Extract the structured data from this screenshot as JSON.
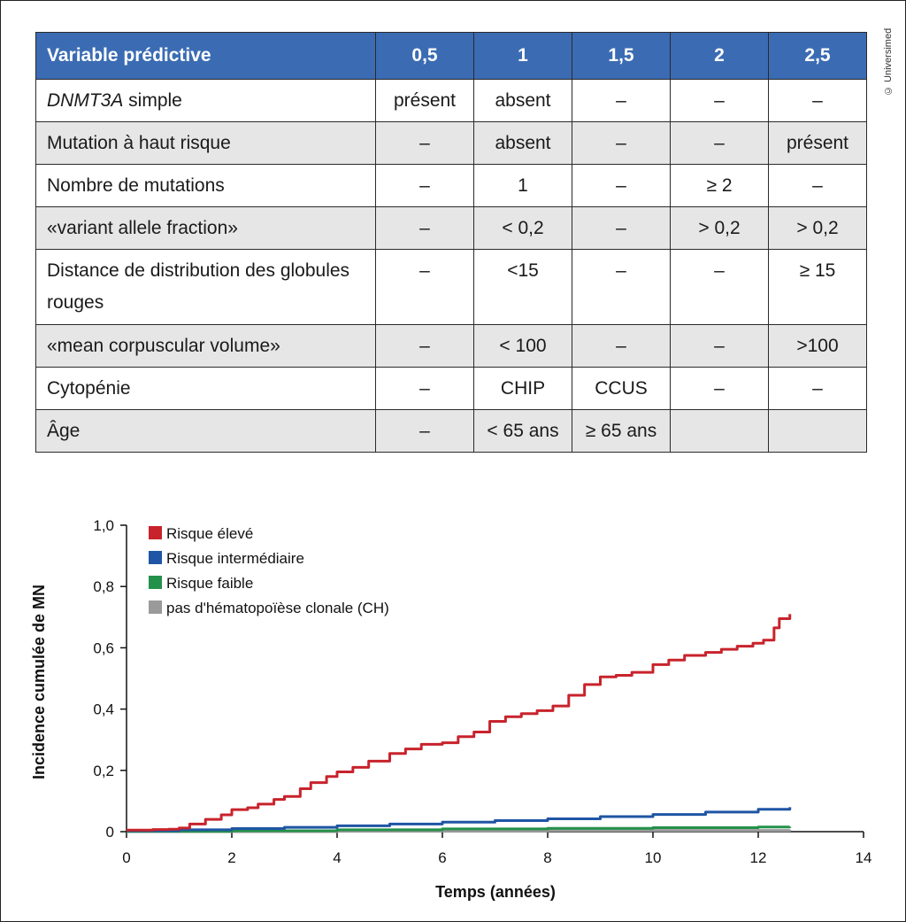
{
  "copyright": "© Universimed",
  "table": {
    "headers": [
      "Variable prédictive",
      "0,5",
      "1",
      "1,5",
      "2",
      "2,5"
    ],
    "rows": [
      {
        "label_em": "DNMT3A",
        "label_rest": " simple",
        "cells": [
          "présent",
          "absent",
          "–",
          "–",
          "–"
        ]
      },
      {
        "label_em": "",
        "label_rest": "Mutation à haut risque",
        "cells": [
          "–",
          "absent",
          "–",
          "–",
          "présent"
        ]
      },
      {
        "label_em": "",
        "label_rest": "Nombre de mutations",
        "cells": [
          "–",
          "1",
          "–",
          "≥ 2",
          "–"
        ]
      },
      {
        "label_em": "",
        "label_rest": "«variant allele fraction»",
        "cells": [
          "–",
          "< 0,2",
          "–",
          "> 0,2",
          "> 0,2"
        ]
      },
      {
        "label_em": "",
        "label_rest": "Distance de distribution des globules rouges",
        "cells": [
          "–",
          "<15",
          "–",
          "–",
          "≥ 15"
        ]
      },
      {
        "label_em": "",
        "label_rest": "«mean corpuscular volume»",
        "cells": [
          "–",
          "< 100",
          "–",
          "–",
          ">100"
        ]
      },
      {
        "label_em": "",
        "label_rest": "Cytopénie",
        "cells": [
          "–",
          "CHIP",
          "CCUS",
          "–",
          "–"
        ]
      },
      {
        "label_em": "",
        "label_rest": "Âge",
        "cells": [
          "–",
          "< 65 ans",
          "≥ 65 ans",
          "",
          ""
        ]
      }
    ]
  },
  "chart_data": {
    "type": "line",
    "title": "",
    "xlabel": "Temps (années)",
    "ylabel": "Incidence cumulée de MN",
    "xlim": [
      0,
      14
    ],
    "ylim": [
      0,
      1.0
    ],
    "x_ticks": [
      "0",
      "2",
      "4",
      "6",
      "8",
      "10",
      "12",
      "14"
    ],
    "y_ticks": [
      "0",
      "0,2",
      "0,4",
      "0,6",
      "0,8",
      "1,0"
    ],
    "legend_position": "top-left",
    "grid": false,
    "series": [
      {
        "name": "Risque élevé",
        "color": "#c8232c",
        "x": [
          0,
          0.5,
          0.8,
          1.0,
          1.2,
          1.5,
          1.8,
          2.0,
          2.3,
          2.5,
          2.8,
          3.0,
          3.3,
          3.5,
          3.8,
          4.0,
          4.3,
          4.6,
          5.0,
          5.3,
          5.6,
          6.0,
          6.3,
          6.6,
          6.9,
          7.2,
          7.5,
          7.8,
          8.1,
          8.4,
          8.7,
          9.0,
          9.3,
          9.6,
          10.0,
          10.3,
          10.6,
          11.0,
          11.3,
          11.6,
          11.9,
          12.1,
          12.3,
          12.4,
          12.6
        ],
        "y": [
          0.005,
          0.007,
          0.008,
          0.012,
          0.025,
          0.04,
          0.055,
          0.072,
          0.078,
          0.09,
          0.105,
          0.115,
          0.14,
          0.16,
          0.18,
          0.195,
          0.21,
          0.23,
          0.255,
          0.27,
          0.285,
          0.29,
          0.31,
          0.325,
          0.36,
          0.375,
          0.385,
          0.395,
          0.41,
          0.445,
          0.48,
          0.505,
          0.51,
          0.52,
          0.545,
          0.56,
          0.575,
          0.585,
          0.595,
          0.605,
          0.615,
          0.625,
          0.665,
          0.695,
          0.71
        ]
      },
      {
        "name": "Risque intermédiaire",
        "color": "#1f55a4",
        "x": [
          0,
          1,
          2,
          3,
          4,
          5,
          6,
          7,
          8,
          9,
          10,
          11,
          12,
          12.6
        ],
        "y": [
          0.003,
          0.006,
          0.01,
          0.014,
          0.019,
          0.025,
          0.031,
          0.036,
          0.042,
          0.049,
          0.056,
          0.064,
          0.073,
          0.08
        ]
      },
      {
        "name": "Risque faible",
        "color": "#23914a",
        "x": [
          0,
          2,
          4,
          6,
          8,
          10,
          12,
          12.6
        ],
        "y": [
          0.001,
          0.003,
          0.006,
          0.009,
          0.011,
          0.013,
          0.015,
          0.016
        ]
      },
      {
        "name": "pas d'hématopoïèse clonale (CH)",
        "color": "#9a9a9a",
        "x": [
          0,
          4,
          8,
          12.6
        ],
        "y": [
          0.0,
          0.002,
          0.004,
          0.006
        ]
      }
    ]
  }
}
